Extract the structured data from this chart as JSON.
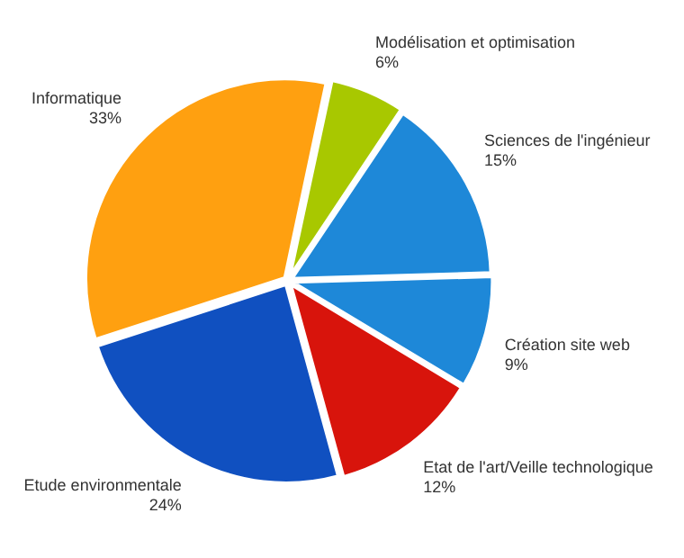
{
  "chart_data": {
    "type": "pie",
    "categories": [
      "Modélisation et optimisation",
      "Sciences de l'ingénieur",
      "Création site web",
      "Etat de l'art/Veille technologique",
      "Etude environmentale",
      "Informatique"
    ],
    "values": [
      6,
      15,
      9,
      12,
      24,
      33
    ],
    "value_labels": [
      "6%",
      "15%",
      "9%",
      "12%",
      "24%",
      "33%"
    ],
    "colors": [
      "#a8c800",
      "#1e88d8",
      "#1e88d8",
      "#d8140c",
      "#1050c0",
      "#ffa010"
    ],
    "legend": false
  }
}
